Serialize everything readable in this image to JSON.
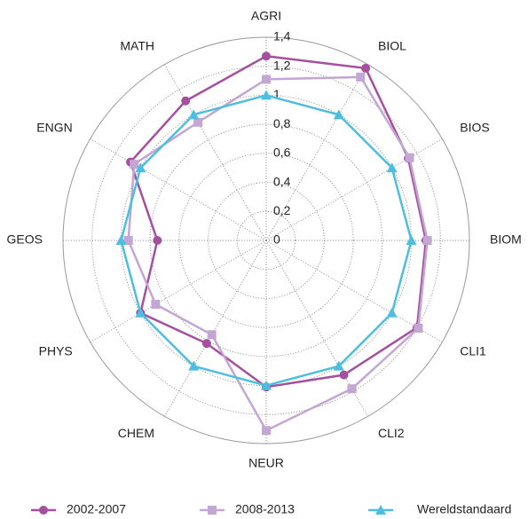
{
  "chart_data": {
    "type": "radar",
    "categories": [
      "AGRI",
      "BIOL",
      "BIOS",
      "BIOM",
      "CLI1",
      "CLI2",
      "NEUR",
      "CHEM",
      "PHYS",
      "GEOS",
      "ENGN",
      "MATH"
    ],
    "series": [
      {
        "name": "2002-2007",
        "color": "#a5509f",
        "marker": "circle",
        "values": [
          1.27,
          1.37,
          1.13,
          1.1,
          1.2,
          1.07,
          1.01,
          0.82,
          1.0,
          0.75,
          1.08,
          1.11
        ]
      },
      {
        "name": "2008-2013",
        "color": "#c3a6d3",
        "marker": "square",
        "values": [
          1.11,
          1.3,
          1.14,
          1.11,
          1.21,
          1.18,
          1.31,
          0.75,
          0.88,
          0.95,
          1.05,
          0.94
        ]
      },
      {
        "name": "Wereldstandaard",
        "color": "#4cbfe0",
        "marker": "triangle",
        "values": [
          1.0,
          1.0,
          1.0,
          1.0,
          1.0,
          1.0,
          1.0,
          1.0,
          1.0,
          1.0,
          1.0,
          1.0
        ]
      }
    ],
    "ylim": [
      0,
      1.4
    ],
    "yticks": [
      0,
      {
        "value": 0.2,
        "label": "0,2"
      },
      {
        "value": 0.4,
        "label": "0,4"
      },
      {
        "value": 0.6,
        "label": "0,6"
      },
      {
        "value": 0.8,
        "label": "0,8"
      },
      1,
      {
        "value": 1.2,
        "label": "1,2"
      },
      {
        "value": 1.4,
        "label": "1,4"
      }
    ],
    "grid": true,
    "legend": "bottom"
  }
}
